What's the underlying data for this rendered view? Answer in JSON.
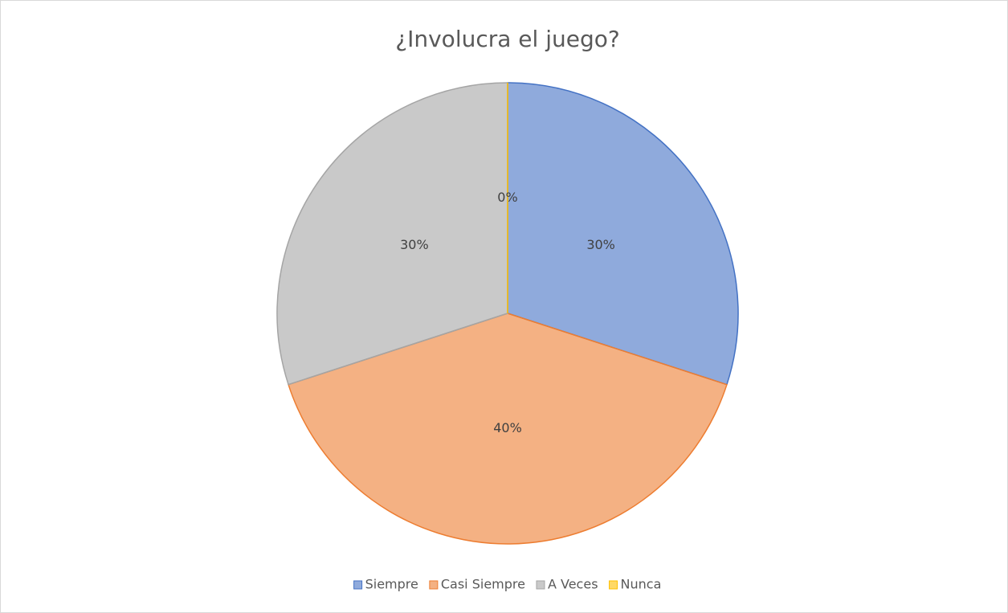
{
  "chart_data": {
    "type": "pie",
    "title": "¿Involucra el juego?",
    "categories": [
      "Siempre",
      "Casi Siempre",
      "A Veces",
      "Nunca"
    ],
    "values": [
      30,
      40,
      30,
      0
    ],
    "value_labels": [
      "30%",
      "40%",
      "30%",
      "0%"
    ],
    "colors": [
      "#4472c4",
      "#ed7d31",
      "#a5a5a5",
      "#ffc000"
    ],
    "legend": "bottom"
  }
}
